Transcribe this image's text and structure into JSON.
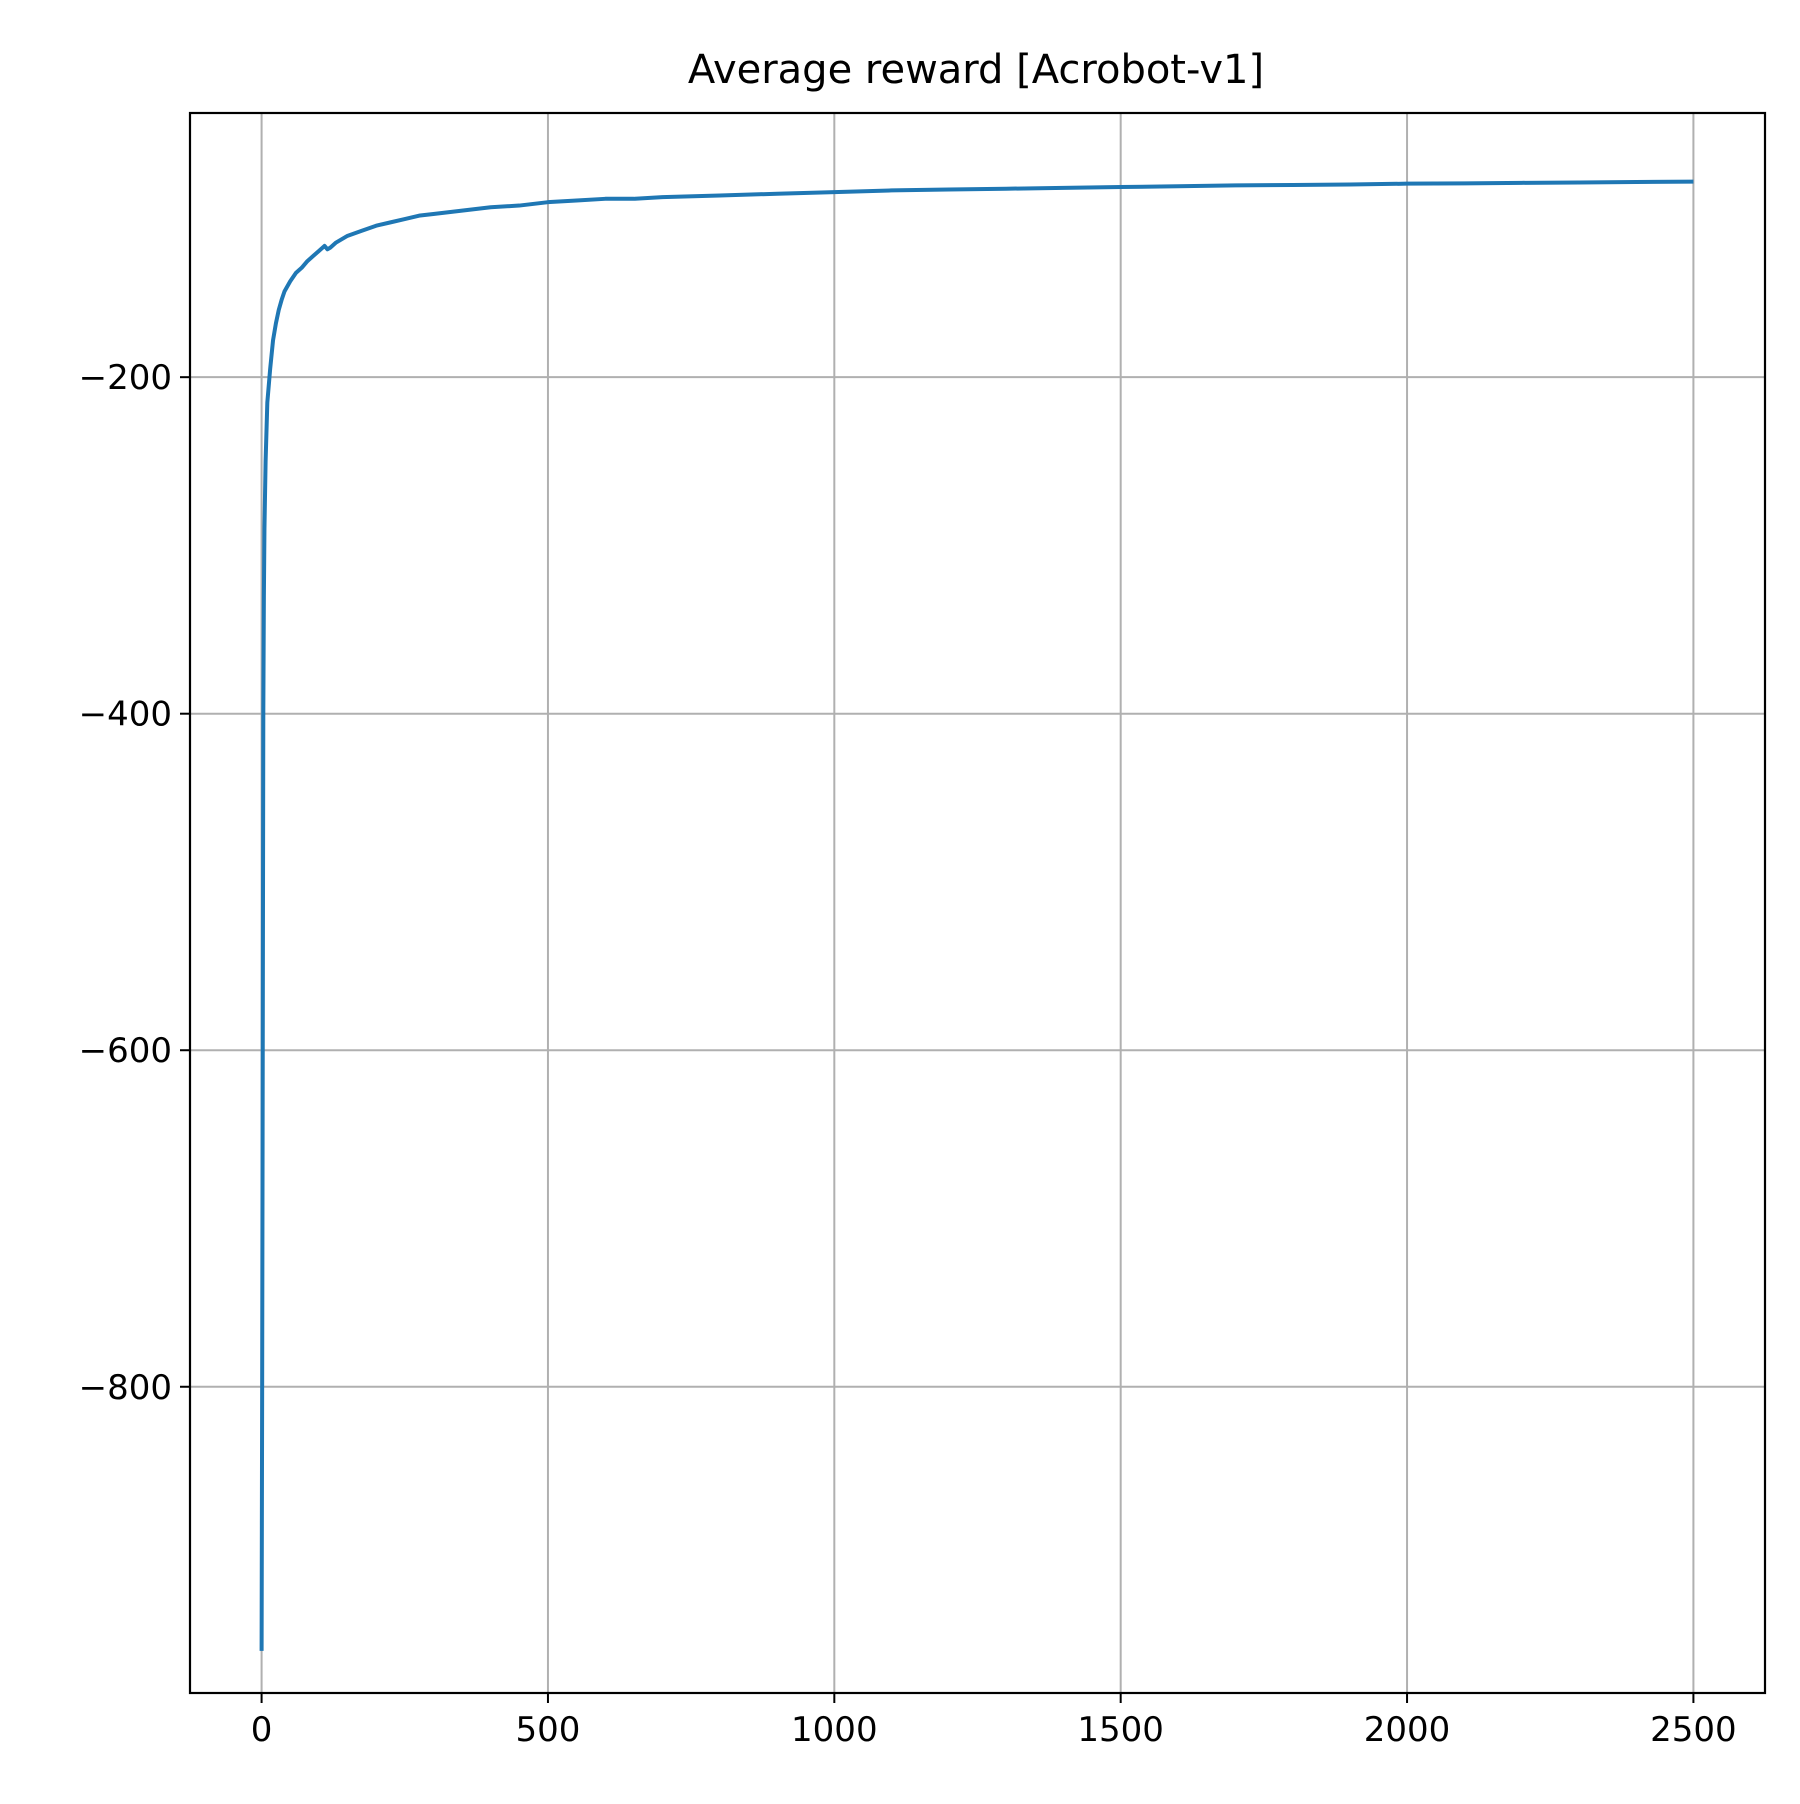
{
  "chart_data": {
    "type": "line",
    "title": "Average reward [Acrobot-v1]",
    "xlabel": "",
    "ylabel": "",
    "xlim": [
      -125,
      2625
    ],
    "ylim": [
      -982,
      -43
    ],
    "grid": true,
    "x_ticks": [
      0,
      500,
      1000,
      1500,
      2000,
      2500
    ],
    "x_tick_labels": [
      "0",
      "500",
      "1000",
      "1500",
      "2000",
      "2500"
    ],
    "y_ticks": [
      -200,
      -400,
      -600,
      -800
    ],
    "y_tick_labels": [
      "−200",
      "−400",
      "−600",
      "−800"
    ],
    "series": [
      {
        "color": "#1f77b4",
        "x": [
          0,
          1,
          2,
          3,
          4,
          5,
          7,
          10,
          15,
          20,
          25,
          30,
          35,
          40,
          50,
          60,
          70,
          80,
          90,
          100,
          110,
          115,
          120,
          130,
          140,
          150,
          175,
          200,
          225,
          250,
          275,
          300,
          350,
          400,
          450,
          500,
          550,
          600,
          650,
          700,
          800,
          900,
          1000,
          1100,
          1200,
          1300,
          1400,
          1500,
          1600,
          1700,
          1800,
          1900,
          2000,
          2100,
          2200,
          2300,
          2400,
          2500
        ],
        "y": [
          -957,
          -800,
          -600,
          -400,
          -330,
          -290,
          -250,
          -215,
          -195,
          -178,
          -168,
          -160,
          -154,
          -149,
          -143,
          -138,
          -135,
          -131,
          -128,
          -125,
          -122,
          -124,
          -123,
          -120,
          -118,
          -116,
          -113,
          -110,
          -108,
          -106,
          -104,
          -103,
          -101,
          -99,
          -98,
          -96,
          -95,
          -94,
          -94,
          -93,
          -92,
          -91,
          -90,
          -89,
          -88.5,
          -88,
          -87.5,
          -87,
          -86.5,
          -86,
          -85.8,
          -85.5,
          -85,
          -84.8,
          -84.5,
          -84.3,
          -84,
          -83.8
        ]
      }
    ]
  }
}
